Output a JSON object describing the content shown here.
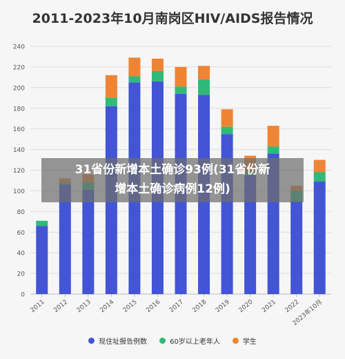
{
  "chart_data": {
    "type": "bar",
    "stacked": true,
    "title": "2011-2023年10月南岗区HIV/AIDS报告情况",
    "categories": [
      "2011",
      "2012",
      "2013",
      "2014",
      "2015",
      "2016",
      "2017",
      "2018",
      "2019",
      "2020",
      "2021",
      "2022",
      "2023年10月"
    ],
    "series": [
      {
        "name": "现住址报告例数",
        "color": "#4355d4",
        "values": [
          66,
          106,
          101,
          182,
          205,
          206,
          194,
          193,
          155,
          115,
          136,
          90,
          109
        ]
      },
      {
        "name": "60岁以上老年人",
        "color": "#2fba7a",
        "values": [
          5,
          2,
          7,
          8,
          6,
          10,
          7,
          15,
          7,
          3,
          7,
          10,
          9
        ]
      },
      {
        "name": "学生",
        "color": "#ef8434",
        "values": [
          0,
          4,
          8,
          22,
          18,
          12,
          19,
          13,
          17,
          16,
          20,
          5,
          12
        ]
      }
    ],
    "ylim": [
      0,
      240
    ],
    "yticks": [
      0,
      20,
      40,
      60,
      80,
      100,
      120,
      140,
      160,
      180,
      200,
      220,
      240
    ],
    "grid": true,
    "legend_position": "bottom"
  },
  "banner": {
    "line1": "31省份新增本土确诊93例(31省份新",
    "line2": "增本土确诊病例12例)"
  }
}
